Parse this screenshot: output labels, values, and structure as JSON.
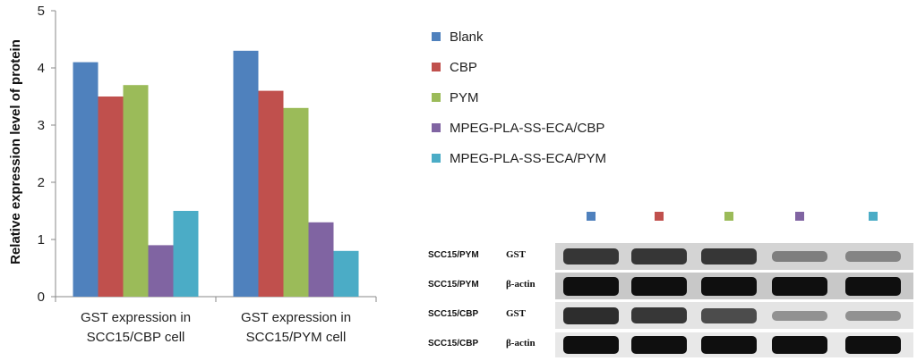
{
  "chart_data": {
    "type": "bar",
    "ylabel": "Relative expression level of protein",
    "ylim": [
      0,
      5
    ],
    "yticks": [
      "0",
      "1",
      "2",
      "3",
      "4",
      "5"
    ],
    "categories": [
      [
        "GST expression in",
        "SCC15/CBP cell"
      ],
      [
        "GST expression in",
        "SCC15/PYM cell"
      ]
    ],
    "series": [
      {
        "name": "Blank",
        "color": "#4f81bd",
        "values": [
          4.1,
          4.3
        ]
      },
      {
        "name": "CBP",
        "color": "#c0504d",
        "values": [
          3.5,
          3.6
        ]
      },
      {
        "name": "PYM",
        "color": "#9bbb59",
        "values": [
          3.7,
          3.3
        ]
      },
      {
        "name": "MPEG-PLA-SS-ECA/CBP",
        "color": "#8064a2",
        "values": [
          0.9,
          1.3
        ]
      },
      {
        "name": "MPEG-PLA-SS-ECA/PYM",
        "color": "#4bacc6",
        "values": [
          1.5,
          0.8
        ]
      }
    ],
    "legend_position": "right",
    "grid": false
  },
  "blot": {
    "rows": [
      {
        "cell": "SCC15/PYM",
        "marker": "GST",
        "background": "#d4d4d4",
        "intensities": [
          0.8,
          0.8,
          0.8,
          0.35,
          0.3
        ]
      },
      {
        "cell": "SCC15/PYM",
        "marker": "β-actin",
        "background": "#c8c8c8",
        "intensities": [
          1,
          1,
          1,
          1,
          1
        ]
      },
      {
        "cell": "SCC15/CBP",
        "marker": "GST",
        "background": "#e4e4e4",
        "intensities": [
          0.85,
          0.8,
          0.7,
          0.25,
          0.25
        ]
      },
      {
        "cell": "SCC15/CBP",
        "marker": "β-actin",
        "background": "#e8e8e8",
        "intensities": [
          1,
          1,
          1,
          1,
          1
        ]
      }
    ]
  }
}
